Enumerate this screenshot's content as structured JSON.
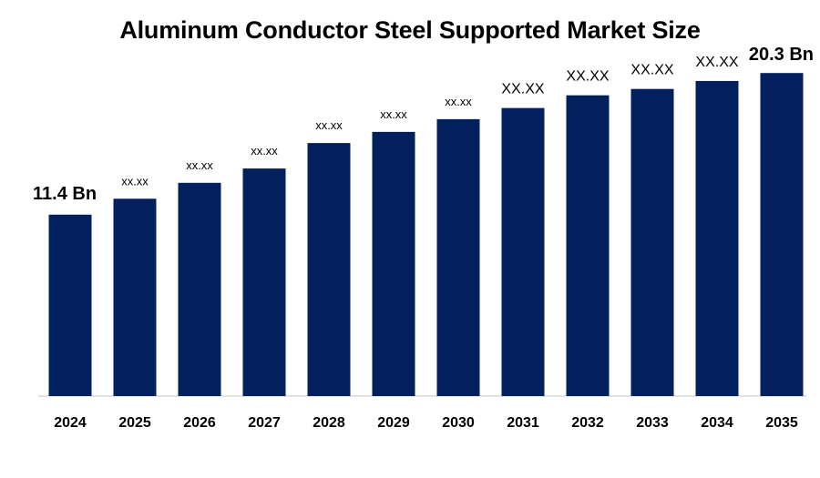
{
  "chart_data": {
    "type": "bar",
    "title": "Aluminum Conductor Steel Supported Market Size",
    "xlabel": "",
    "ylabel": "",
    "categories": [
      "2024",
      "2025",
      "2026",
      "2027",
      "2028",
      "2029",
      "2030",
      "2031",
      "2032",
      "2033",
      "2034",
      "2035"
    ],
    "values": [
      11.4,
      12.4,
      13.4,
      14.3,
      15.9,
      16.6,
      17.4,
      18.1,
      18.9,
      19.3,
      19.8,
      20.3
    ],
    "data_labels": [
      "11.4  Bn",
      "xx.xx",
      "xx.xx",
      "xx.xx",
      "xx.xx",
      "xx.xx",
      "xx.xx",
      "XX.XX",
      "XX.XX",
      "XX.XX",
      "XX.XX",
      "20.3  Bn"
    ],
    "label_styles": [
      "big",
      "small",
      "small",
      "small",
      "small",
      "small",
      "small",
      "med",
      "med",
      "med",
      "med",
      "big"
    ],
    "ylim": [
      0,
      22.6
    ],
    "grid": false,
    "legend": "none",
    "colors": {
      "bar": "#03205E",
      "axis": "#D9D9D9"
    }
  }
}
